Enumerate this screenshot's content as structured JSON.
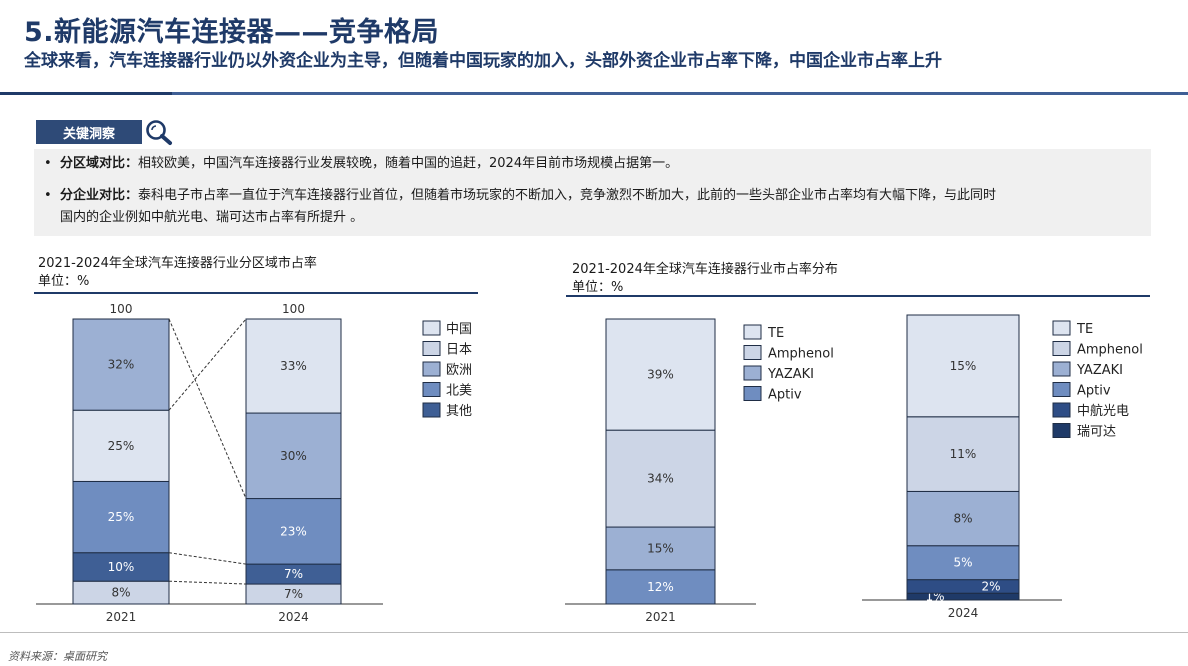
{
  "header": {
    "title": "5.新能源汽车连接器——竞争格局",
    "subtitle": "全球来看，汽车连接器行业仍以外资企业为主导，但随着中国玩家的加入，头部外资企业市占率下降，中国企业市占率上升"
  },
  "insight": {
    "tag": "关键洞察",
    "icon": "magnifier-icon",
    "bullets": [
      {
        "head": "分区域对比：",
        "body": "相较欧美，中国汽车连接器行业发展较晚，随着中国的追赶，2024年目前市场规模占据第一。",
        "line2": ""
      },
      {
        "head": "分企业对比：",
        "body": "泰科电子市占率一直位于汽车连接器行业首位，但随着市场玩家的不断加入，竞争激烈不断加大，此前的一些头部企业市占率均有大幅下降，与此同时",
        "line2": "国内的企业例如中航光电、瑞可达市占率有所提升 。"
      }
    ]
  },
  "chart_left_text": {
    "title": "2021-2024年全球汽车连接器行业分区域市占率",
    "unit": "单位：%"
  },
  "chart_right_text": {
    "title": "2021-2024年全球汽车连接器行业市占率分布",
    "unit": "单位：%"
  },
  "chart_data": [
    {
      "type": "bar",
      "stacked": true,
      "title": "2021-2024年全球汽车连接器行业分区域市占率",
      "unit": "单位：%",
      "categories": [
        "2021",
        "2024"
      ],
      "totals": [
        "100",
        "100"
      ],
      "series": [
        {
          "name": "其他",
          "color": "#3f5f95",
          "values": [
            8,
            7
          ],
          "labels": [
            "8%",
            "7%"
          ]
        },
        {
          "name": "北美",
          "color": "#2e4d85",
          "values": [
            10,
            7
          ],
          "labels": [
            "10%",
            "7%"
          ]
        },
        {
          "name": "欧洲",
          "color": "#6f8dc0",
          "values": [
            25,
            23
          ],
          "labels": [
            "25%",
            "23%"
          ]
        },
        {
          "name": "日本",
          "color": "#dde4f0",
          "values": [
            25,
            30
          ],
          "labels": [
            "25%",
            "30%"
          ]
        },
        {
          "name": "中国",
          "color": "#9cb0d3",
          "values": [
            32,
            33
          ],
          "labels": [
            "32%",
            "33%"
          ]
        }
      ],
      "segment_colors": [
        [
          "#ccd5e6",
          "#dde4f0",
          "#6f8dc0",
          "#2e4d85",
          "#9cb0d3"
        ]
      ],
      "legend": [
        {
          "name": "中国",
          "color": "#dde4f0"
        },
        {
          "name": "日本",
          "color": "#ccd5e6"
        },
        {
          "name": "欧洲",
          "color": "#9cb0d3"
        },
        {
          "name": "北美",
          "color": "#6f8dc0"
        },
        {
          "name": "其他",
          "color": "#3f5f95"
        }
      ],
      "bar_colors": {
        "2021": [
          "#ccd5e6",
          "#3f5f95",
          "#6f8dc0",
          "#dde4f0",
          "#9cb0d3"
        ],
        "2024": [
          "#ccd5e6",
          "#3f5f95",
          "#6f8dc0",
          "#9cb0d3",
          "#dde4f0"
        ]
      },
      "ylim": [
        0,
        100
      ],
      "legend_position": "right"
    },
    {
      "type": "bar",
      "stacked": true,
      "title": "2021-2024年全球汽车连接器行业市占率分布",
      "unit": "单位：%",
      "categories": [
        "2021",
        "2024"
      ],
      "series": [
        {
          "name": "瑞可达",
          "color": "#1f3a68",
          "values": [
            0,
            1
          ],
          "labels": [
            "",
            "1%"
          ]
        },
        {
          "name": "中航光电",
          "color": "#2e4d85",
          "values": [
            0,
            2
          ],
          "labels": [
            "",
            "2%"
          ]
        },
        {
          "name": "Aptiv",
          "color": "#6f8dc0",
          "values": [
            12,
            5
          ],
          "labels": [
            "12%",
            "5%"
          ]
        },
        {
          "name": "YAZAKI",
          "color": "#9cb0d3",
          "values": [
            15,
            8
          ],
          "labels": [
            "15%",
            "8%"
          ]
        },
        {
          "name": "Amphenol",
          "color": "#ccd5e6",
          "values": [
            34,
            11
          ],
          "labels": [
            "34%",
            "11%"
          ]
        },
        {
          "name": "TE",
          "color": "#dde4f0",
          "values": [
            39,
            15
          ],
          "labels": [
            "39%",
            "15%"
          ]
        }
      ],
      "legend_2021": [
        {
          "name": "TE",
          "color": "#dde4f0"
        },
        {
          "name": "Amphenol",
          "color": "#ccd5e6"
        },
        {
          "name": "YAZAKI",
          "color": "#9cb0d3"
        },
        {
          "name": "Aptiv",
          "color": "#6f8dc0"
        }
      ],
      "legend_2024": [
        {
          "name": "TE",
          "color": "#dde4f0"
        },
        {
          "name": "Amphenol",
          "color": "#ccd5e6"
        },
        {
          "name": "YAZAKI",
          "color": "#9cb0d3"
        },
        {
          "name": "Aptiv",
          "color": "#6f8dc0"
        },
        {
          "name": "中航光电",
          "color": "#2e4d85"
        },
        {
          "name": "瑞可达",
          "color": "#1f3a68"
        }
      ],
      "legend_position": "right"
    }
  ],
  "footer": {
    "source": "资料来源：桌面研究"
  }
}
